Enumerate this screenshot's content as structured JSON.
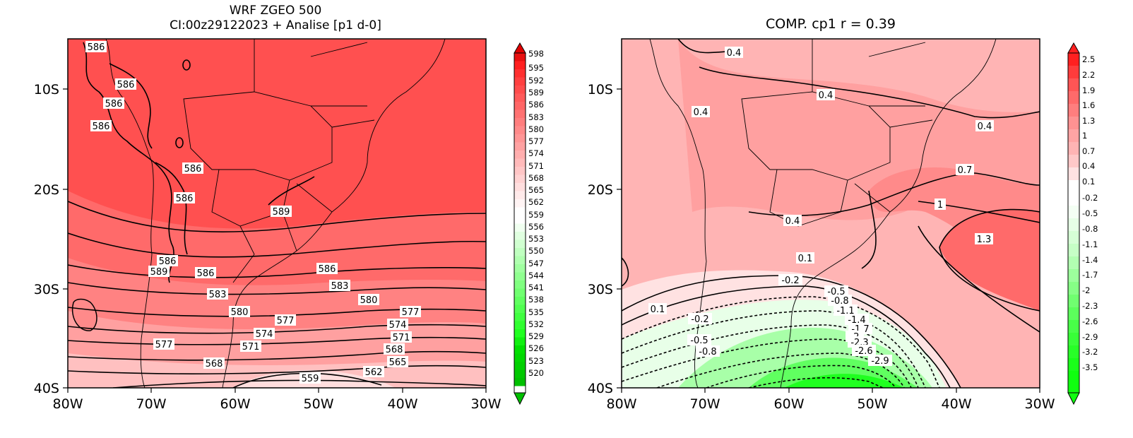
{
  "left_panel": {
    "title_line1": "WRF ZGEO 500",
    "title_line2": "CI:00z29122023 + Analise  [p1 d-0]",
    "x_ticks": [
      "80W",
      "70W",
      "60W",
      "50W",
      "40W",
      "30W"
    ],
    "y_ticks": [
      "10S",
      "20S",
      "30S",
      "40S"
    ],
    "colorbar_labels": [
      "598",
      "595",
      "592",
      "589",
      "586",
      "583",
      "580",
      "577",
      "574",
      "571",
      "568",
      "565",
      "562",
      "559",
      "556",
      "553",
      "550",
      "547",
      "544",
      "541",
      "538",
      "535",
      "532",
      "529",
      "526",
      "523",
      "520"
    ],
    "contour_labels": [
      "586",
      "586",
      "586",
      "586",
      "586",
      "586",
      "589",
      "586",
      "589",
      "586",
      "586",
      "583",
      "583",
      "580",
      "580",
      "577",
      "577",
      "574",
      "574",
      "571",
      "571",
      "568",
      "577",
      "568",
      "565",
      "562",
      "559"
    ]
  },
  "right_panel": {
    "title": "COMP. cp1   r =   0.39",
    "x_ticks": [
      "80W",
      "70W",
      "60W",
      "50W",
      "40W",
      "30W"
    ],
    "y_ticks": [
      "10S",
      "20S",
      "30S",
      "40S"
    ],
    "colorbar_labels": [
      "2.5",
      "2.2",
      "1.9",
      "1.6",
      "1.3",
      "1",
      "0.7",
      "0.4",
      "0.1",
      "-0.2",
      "-0.5",
      "-0.8",
      "-1.1",
      "-1.4",
      "-1.7",
      "-2",
      "-2.3",
      "-2.6",
      "-2.9",
      "-3.2",
      "-3.5"
    ],
    "contour_labels": [
      "0.4",
      "0.4",
      "0.4",
      "0.4",
      "0.7",
      "1",
      "0.4",
      "1.3",
      "0.1",
      "-0.2",
      "0.1",
      "-0.2",
      "-0.5",
      "-0.8",
      "-1.1",
      "-1.4",
      "-1.7",
      "-2",
      "-2.3",
      "-2.6",
      "-2.9",
      "-0.5",
      "-0.8"
    ]
  },
  "colors": {
    "red_dark": "#ff3030",
    "red_mid": "#ff5050",
    "red_light": "#ff8080",
    "pink": "#ffb4b4",
    "pale_pink": "#ffd0d0",
    "green_bright": "#20ff20",
    "green_light": "#c0ffc0"
  }
}
